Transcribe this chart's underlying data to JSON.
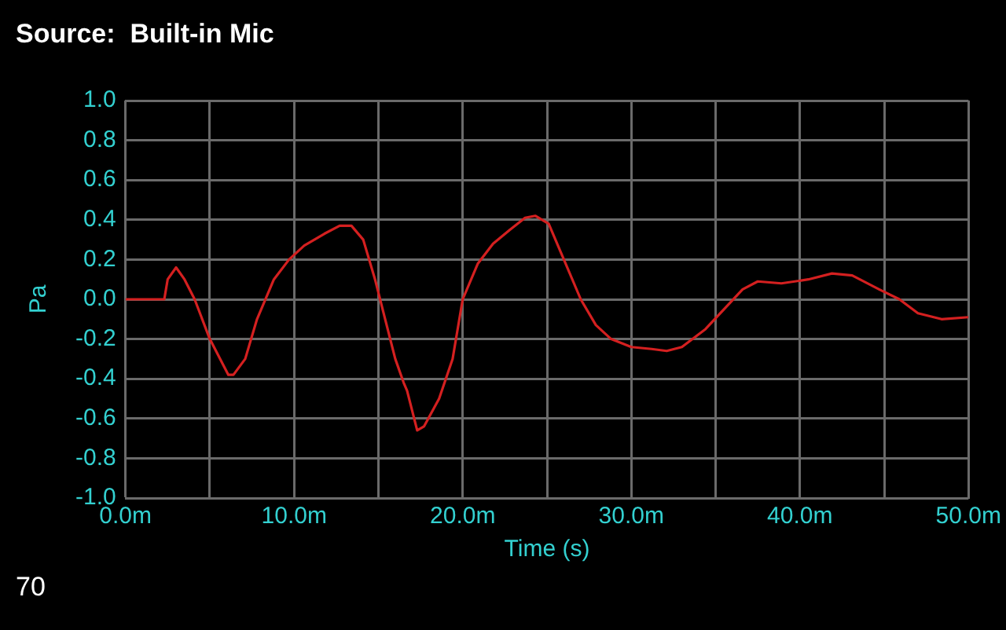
{
  "chart_data": {
    "type": "line",
    "title": "Source:  Built-in Mic",
    "xlabel": "Time (s)",
    "ylabel": "Pa",
    "annotations": [
      "70"
    ],
    "x": [
      0,
      2.3,
      2.5,
      3,
      3.5,
      4.1,
      5,
      6.1,
      6.4,
      7.1,
      7.8,
      8.8,
      9.7,
      10.6,
      11.8,
      12.7,
      13.4,
      14.1,
      14.8,
      15.4,
      16,
      16.5,
      16.7,
      17.3,
      17.7,
      18.6,
      19.4,
      20,
      20.9,
      21.8,
      22.8,
      23.7,
      24.3,
      25.1,
      26,
      27,
      27.9,
      28.8,
      30,
      31.2,
      32.1,
      33,
      34.4,
      35.5,
      36.6,
      37.5,
      38.9,
      40.5,
      41.9,
      43.1,
      44.7,
      45.9,
      47,
      48.4,
      50
    ],
    "series": [
      {
        "color": "#d42020",
        "values": [
          0,
          0,
          0.1,
          0.16,
          0.1,
          0,
          -0.2,
          -0.38,
          -0.38,
          -0.3,
          -0.1,
          0.1,
          0.2,
          0.27,
          0.33,
          0.37,
          0.37,
          0.3,
          0.1,
          -0.1,
          -0.3,
          -0.42,
          -0.46,
          -0.66,
          -0.64,
          -0.5,
          -0.3,
          0,
          0.18,
          0.28,
          0.35,
          0.41,
          0.42,
          0.38,
          0.2,
          0,
          -0.13,
          -0.2,
          -0.24,
          -0.25,
          -0.26,
          -0.24,
          -0.15,
          -0.05,
          0.05,
          0.09,
          0.08,
          0.1,
          0.13,
          0.12,
          0.05,
          0,
          -0.07,
          -0.1,
          -0.09
        ]
      }
    ],
    "xlim": [
      0,
      50
    ],
    "xticks": [
      {
        "value": 0,
        "label": "0.0m"
      },
      {
        "value": 5,
        "label": null
      },
      {
        "value": 10,
        "label": "10.0m"
      },
      {
        "value": 15,
        "label": null
      },
      {
        "value": 20,
        "label": "20.0m"
      },
      {
        "value": 25,
        "label": null
      },
      {
        "value": 30,
        "label": "30.0m"
      },
      {
        "value": 35,
        "label": null
      },
      {
        "value": 40,
        "label": "40.0m"
      },
      {
        "value": 45,
        "label": null
      },
      {
        "value": 50,
        "label": "50.0m"
      }
    ],
    "ylim": [
      -1,
      1
    ],
    "yticks": [
      {
        "value": -1,
        "label": "-1.0"
      },
      {
        "value": -0.8,
        "label": "-0.8"
      },
      {
        "value": -0.6,
        "label": "-0.6"
      },
      {
        "value": -0.4,
        "label": "-0.4"
      },
      {
        "value": -0.2,
        "label": "-0.2"
      },
      {
        "value": 0,
        "label": "0.0"
      },
      {
        "value": 0.2,
        "label": "0.2"
      },
      {
        "value": 0.4,
        "label": "0.4"
      },
      {
        "value": 0.6,
        "label": "0.6"
      },
      {
        "value": 0.8,
        "label": "0.8"
      },
      {
        "value": 1,
        "label": "1.0"
      }
    ],
    "grid": true,
    "legend": false,
    "marker": "none",
    "line_style": "solid"
  }
}
